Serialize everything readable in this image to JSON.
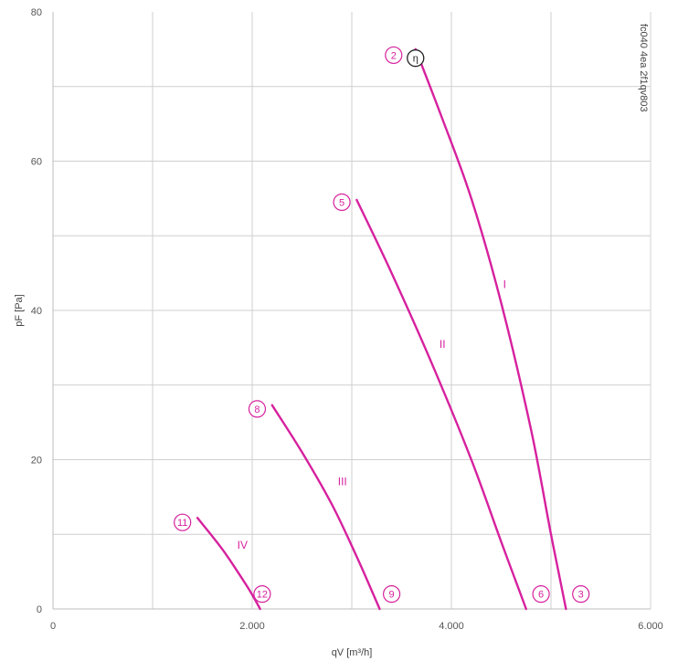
{
  "chart_data": {
    "type": "line",
    "xlabel": "qV [m³/h]",
    "ylabel": "pF [Pa]",
    "xlim": [
      0,
      6000
    ],
    "ylim": [
      0,
      80
    ],
    "x_ticks": [
      {
        "value": 0,
        "label": "0"
      },
      {
        "value": 2000,
        "label": "2.000"
      },
      {
        "value": 4000,
        "label": "4.000"
      },
      {
        "value": 6000,
        "label": "6.000"
      }
    ],
    "y_ticks": [
      {
        "value": 0,
        "label": "0"
      },
      {
        "value": 20,
        "label": "20"
      },
      {
        "value": 40,
        "label": "40"
      },
      {
        "value": 60,
        "label": "60"
      },
      {
        "value": 80,
        "label": "80"
      }
    ],
    "grid": true,
    "series_color": "#d6219e",
    "series": [
      {
        "name": "I",
        "x": [
          3640,
          3900,
          4200,
          4500,
          4800,
          5000,
          5150
        ],
        "y": [
          75,
          66,
          55,
          41,
          24,
          10,
          0
        ],
        "label_at": {
          "x": 4520,
          "y": 43
        },
        "start_marker": {
          "label": "2",
          "x": 3420,
          "y": 74.2
        },
        "end_marker": {
          "label": "3",
          "x": 5300,
          "y": 2
        }
      },
      {
        "name": "II",
        "x": [
          3050,
          3400,
          3800,
          4200,
          4500,
          4750
        ],
        "y": [
          54.8,
          45,
          33,
          20,
          9,
          0
        ],
        "label_at": {
          "x": 3880,
          "y": 35
        },
        "start_marker": {
          "label": "5",
          "x": 2900,
          "y": 54.5
        },
        "end_marker": {
          "label": "6",
          "x": 4900,
          "y": 2
        }
      },
      {
        "name": "III",
        "x": [
          2200,
          2500,
          2800,
          3050,
          3280
        ],
        "y": [
          27.3,
          21,
          14,
          7,
          0
        ],
        "label_at": {
          "x": 2860,
          "y": 16.6
        },
        "start_marker": {
          "label": "8",
          "x": 2050,
          "y": 26.8
        },
        "end_marker": {
          "label": "9",
          "x": 3400,
          "y": 2
        }
      },
      {
        "name": "IV",
        "x": [
          1450,
          1700,
          1950,
          2080
        ],
        "y": [
          12.2,
          8,
          3,
          0
        ],
        "label_at": {
          "x": 1850,
          "y": 8.1
        },
        "start_marker": {
          "label": "11",
          "x": 1300,
          "y": 11.6
        },
        "end_marker": {
          "label": "12",
          "x": 2100,
          "y": 2
        }
      }
    ],
    "annotations": [
      {
        "text": "η",
        "x": 3640,
        "y": 73.8
      }
    ]
  },
  "document_id": "fc040 4ea 2f1qv803"
}
